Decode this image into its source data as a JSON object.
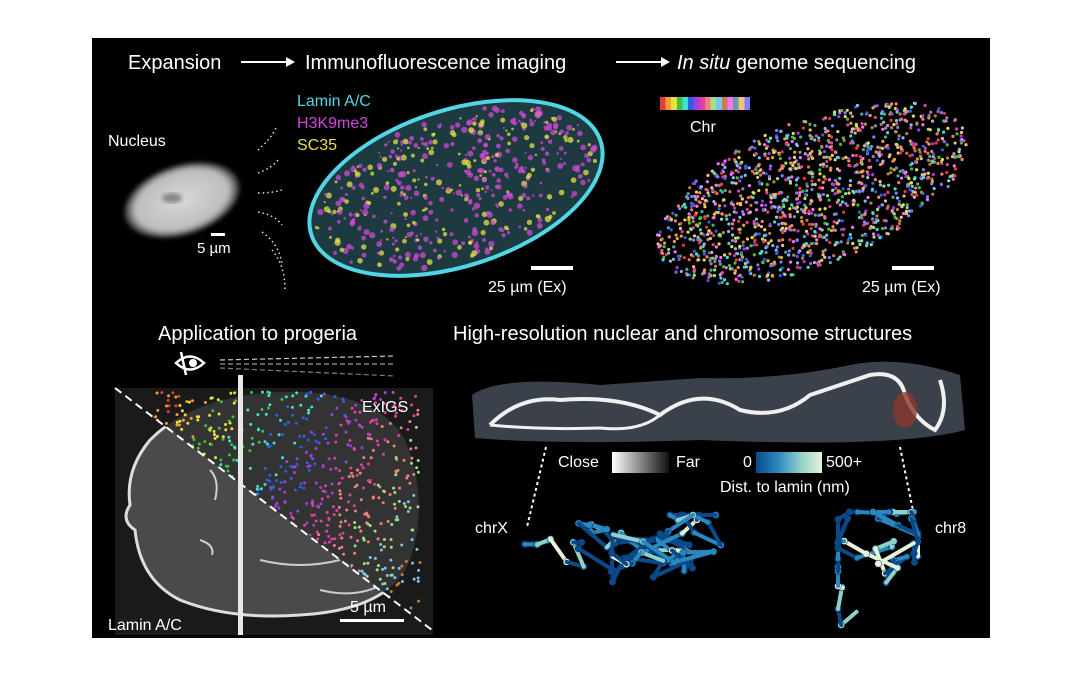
{
  "header": {
    "step1": "Expansion",
    "step2": "Immunofluorescence imaging",
    "step3_italic": "In situ",
    "step3_rest": " genome sequencing",
    "arrow_icon": "long-right-arrow"
  },
  "nucleus": {
    "label": "Nucleus",
    "scale": "5 µm"
  },
  "immunofluorescence": {
    "legend": [
      {
        "label": "Lamin A/C",
        "color": "#52d6e6"
      },
      {
        "label": "H3K9me3",
        "color": "#d248d6"
      },
      {
        "label": "SC35",
        "color": "#e6e04a"
      }
    ],
    "scale": "25 µm (Ex)"
  },
  "sequencing": {
    "colorbar_label": "Chr",
    "colorbar_colors": [
      "#e63c3c",
      "#f0a030",
      "#e6e040",
      "#40c040",
      "#40e0d0",
      "#3060e0",
      "#a040e0",
      "#e040a0",
      "#f08080",
      "#a0e080",
      "#80c0f0",
      "#c08040",
      "#ff70ff",
      "#60a0a0",
      "#f0c080",
      "#8080ff"
    ],
    "scale": "25 µm (Ex)"
  },
  "progeria": {
    "title": "Application to progeria",
    "eye_icon": "eye",
    "label_top": "ExIGS",
    "label_bottom": "Lamin A/C",
    "scale": "5 µm"
  },
  "structures": {
    "title": "High-resolution nuclear and chromosome structures",
    "close_label": "Close",
    "far_label": "Far",
    "dist_min": "0",
    "dist_max": "500+",
    "dist_label": "Dist. to lamin (nm)",
    "dist_colors": [
      "#0a4a8a",
      "#2a88c0",
      "#8fd0c8",
      "#e6f2dc"
    ],
    "chr_left": "chrX",
    "chr_right": "chr8"
  }
}
